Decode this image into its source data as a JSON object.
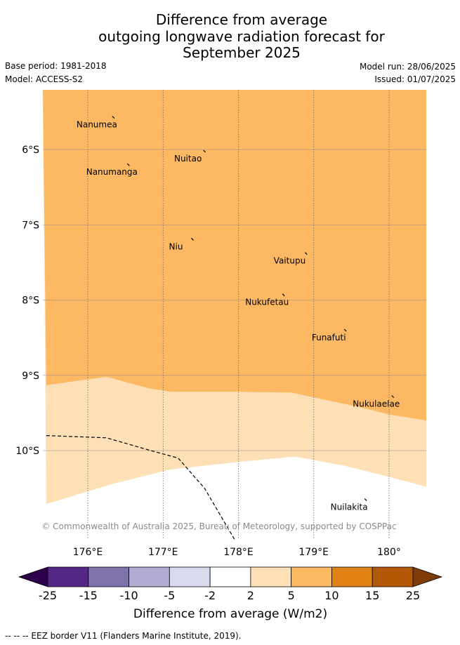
{
  "title": {
    "line1": "Difference from average",
    "line2": "outgoing longwave radiation forecast for",
    "line3": "September 2025"
  },
  "meta": {
    "base_period": "Base period: 1981-2018",
    "model": "Model: ACCESS-S2",
    "model_run": "Model run: 28/06/2025",
    "issued": "Issued: 01/07/2025"
  },
  "map": {
    "lon_range": [
      175.45,
      180.5
    ],
    "lat_range": [
      -11.2,
      -5.35
    ],
    "lon_ticks": [
      {
        "value": 176,
        "label": "176°E"
      },
      {
        "value": 177,
        "label": "177°E"
      },
      {
        "value": 178,
        "label": "178°E"
      },
      {
        "value": 179,
        "label": "179°E"
      },
      {
        "value": 180,
        "label": "180°"
      }
    ],
    "lat_ticks": [
      {
        "value": -6,
        "label": "6°S"
      },
      {
        "value": -7,
        "label": "7°S"
      },
      {
        "value": -8,
        "label": "8°S"
      },
      {
        "value": -9,
        "label": "9°S"
      },
      {
        "value": -10,
        "label": "10°S"
      }
    ],
    "places": [
      {
        "name": "Nanumea",
        "lon": 176.12,
        "lat": -5.67
      },
      {
        "name": "Nuitao",
        "lon": 177.33,
        "lat": -6.12
      },
      {
        "name": "Nanumanga",
        "lon": 176.32,
        "lat": -6.3
      },
      {
        "name": "Niu",
        "lon": 177.17,
        "lat": -7.29
      },
      {
        "name": "Vaitupu",
        "lon": 178.68,
        "lat": -7.48
      },
      {
        "name": "Nukufetau",
        "lon": 178.38,
        "lat": -8.03
      },
      {
        "name": "Funafuti",
        "lon": 179.2,
        "lat": -8.5
      },
      {
        "name": "Nukulaelae",
        "lon": 179.83,
        "lat": -9.38
      },
      {
        "name": "Nuilakita",
        "lon": 179.47,
        "lat": -10.75
      }
    ],
    "copyright": "© Commonwealth of Australia 2025, Bureau of Meteorology, supported by COSPPac",
    "zones": [
      {
        "band": "5 to 10",
        "color": "#fdb863"
      },
      {
        "band": "2 to 5",
        "color": "#fee0b6"
      },
      {
        "band": "-2 to 2",
        "color": "#ffffff"
      }
    ],
    "upper_boundary": [
      [
        175.45,
        -9.13
      ],
      [
        176.25,
        -9.02
      ],
      [
        176.8,
        -9.17
      ],
      [
        177.1,
        -9.22
      ],
      [
        177.5,
        -9.22
      ],
      [
        178.0,
        -9.22
      ],
      [
        178.7,
        -9.23
      ],
      [
        179.6,
        -9.42
      ],
      [
        180.0,
        -9.52
      ],
      [
        180.5,
        -9.6
      ]
    ],
    "lower_boundary": [
      [
        175.45,
        -10.71
      ],
      [
        176.3,
        -10.45
      ],
      [
        177.1,
        -10.25
      ],
      [
        178.0,
        -10.15
      ],
      [
        178.75,
        -10.08
      ],
      [
        179.4,
        -10.2
      ],
      [
        180.0,
        -10.35
      ],
      [
        180.5,
        -10.48
      ]
    ],
    "eez_border": [
      [
        175.45,
        -9.8
      ],
      [
        176.25,
        -9.83
      ],
      [
        176.8,
        -9.99
      ],
      [
        177.2,
        -10.1
      ],
      [
        177.55,
        -10.5
      ],
      [
        177.96,
        -11.2
      ]
    ]
  },
  "colorbar": {
    "label": "Difference from average (W/m2)",
    "ticks": [
      "-25",
      "-15",
      "-10",
      "-5",
      "-2",
      "2",
      "5",
      "10",
      "15",
      "25"
    ],
    "colors": [
      "#542788",
      "#8073ac",
      "#b2abd2",
      "#d8daeb",
      "#ffffff",
      "#fee0b6",
      "#fdb863",
      "#e08214",
      "#b35806"
    ],
    "under_color": "#2d004b",
    "over_color": "#7f3b08"
  },
  "footnote": "--  --  -- EEZ border V11 (Flanders Marine Institute, 2019)."
}
